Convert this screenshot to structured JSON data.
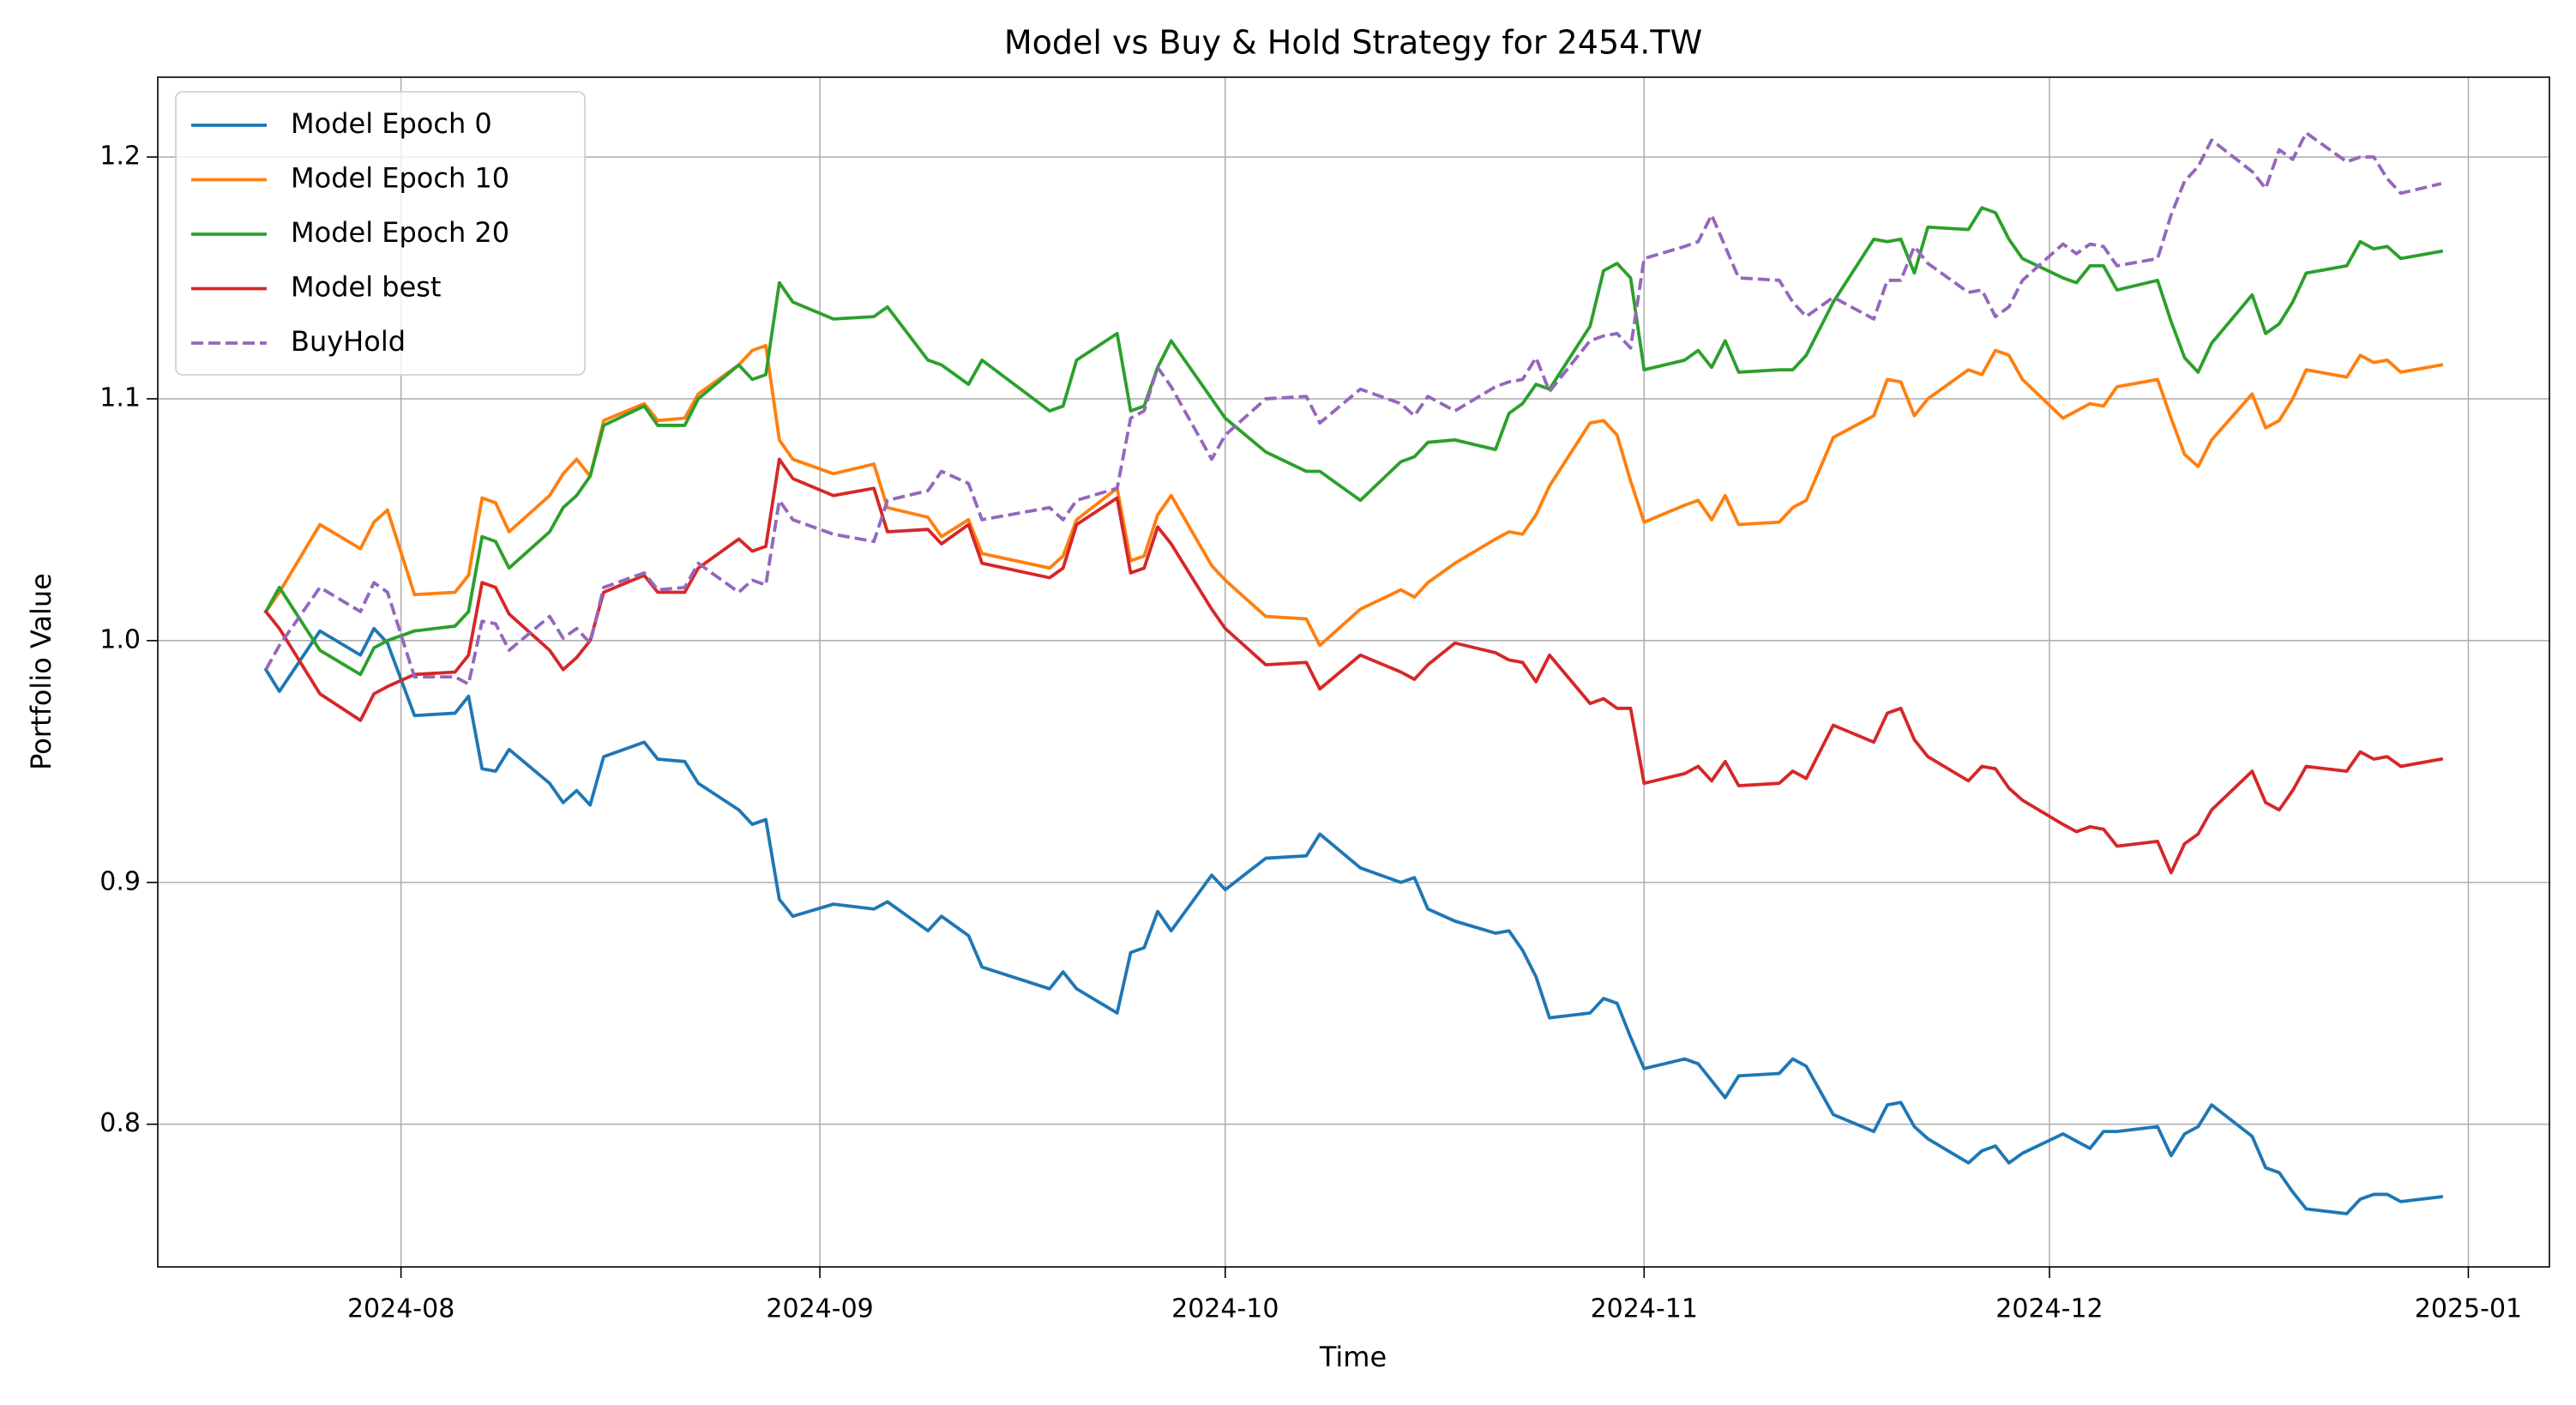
{
  "chart_data": {
    "type": "line",
    "title": "Model vs Buy & Hold Strategy for 2454.TW",
    "x_label": "Time",
    "y_label": "Portfolio Value",
    "x": [
      "2024-07-22",
      "2024-07-23",
      "2024-07-26",
      "2024-07-29",
      "2024-07-30",
      "2024-07-31",
      "2024-08-02",
      "2024-08-05",
      "2024-08-06",
      "2024-08-07",
      "2024-08-08",
      "2024-08-09",
      "2024-08-12",
      "2024-08-13",
      "2024-08-14",
      "2024-08-15",
      "2024-08-16",
      "2024-08-19",
      "2024-08-20",
      "2024-08-22",
      "2024-08-23",
      "2024-08-26",
      "2024-08-27",
      "2024-08-28",
      "2024-08-29",
      "2024-08-30",
      "2024-09-02",
      "2024-09-05",
      "2024-09-06",
      "2024-09-09",
      "2024-09-10",
      "2024-09-12",
      "2024-09-13",
      "2024-09-18",
      "2024-09-19",
      "2024-09-20",
      "2024-09-23",
      "2024-09-24",
      "2024-09-25",
      "2024-09-26",
      "2024-09-27",
      "2024-09-30",
      "2024-10-01",
      "2024-10-04",
      "2024-10-07",
      "2024-10-08",
      "2024-10-11",
      "2024-10-14",
      "2024-10-15",
      "2024-10-16",
      "2024-10-18",
      "2024-10-21",
      "2024-10-22",
      "2024-10-23",
      "2024-10-24",
      "2024-10-25",
      "2024-10-28",
      "2024-10-29",
      "2024-10-30",
      "2024-10-31",
      "2024-11-01",
      "2024-11-04",
      "2024-11-05",
      "2024-11-06",
      "2024-11-07",
      "2024-11-08",
      "2024-11-11",
      "2024-11-12",
      "2024-11-13",
      "2024-11-15",
      "2024-11-18",
      "2024-11-19",
      "2024-11-20",
      "2024-11-21",
      "2024-11-22",
      "2024-11-25",
      "2024-11-26",
      "2024-11-27",
      "2024-11-28",
      "2024-11-29",
      "2024-12-02",
      "2024-12-03",
      "2024-12-04",
      "2024-12-05",
      "2024-12-06",
      "2024-12-09",
      "2024-12-10",
      "2024-12-11",
      "2024-12-12",
      "2024-12-13",
      "2024-12-16",
      "2024-12-17",
      "2024-12-18",
      "2024-12-19",
      "2024-12-20",
      "2024-12-23",
      "2024-12-24",
      "2024-12-25",
      "2024-12-26",
      "2024-12-27",
      "2024-12-30"
    ],
    "series": [
      {
        "name": "Model Epoch 0",
        "color": "#1f77b4",
        "dashed": false,
        "values": [
          0.988,
          0.979,
          1.004,
          0.994,
          1.005,
          0.999,
          0.969,
          0.97,
          0.977,
          0.947,
          0.946,
          0.955,
          0.941,
          0.933,
          0.938,
          0.932,
          0.952,
          0.958,
          0.951,
          0.95,
          0.941,
          0.93,
          0.924,
          0.926,
          0.893,
          0.886,
          0.891,
          0.889,
          0.892,
          0.88,
          0.886,
          0.878,
          0.865,
          0.856,
          0.863,
          0.856,
          0.846,
          0.871,
          0.873,
          0.888,
          0.88,
          0.903,
          0.897,
          0.91,
          0.911,
          0.92,
          0.906,
          0.9,
          0.902,
          0.889,
          0.884,
          0.879,
          0.88,
          0.872,
          0.861,
          0.844,
          0.846,
          0.852,
          0.85,
          0.836,
          0.823,
          0.827,
          0.825,
          0.818,
          0.811,
          0.82,
          0.821,
          0.827,
          0.824,
          0.804,
          0.797,
          0.808,
          0.809,
          0.799,
          0.794,
          0.784,
          0.789,
          0.791,
          0.784,
          0.788,
          0.796,
          0.793,
          0.79,
          0.797,
          0.797,
          0.799,
          0.787,
          0.796,
          0.799,
          0.808,
          0.795,
          0.782,
          0.78,
          0.772,
          0.765,
          0.763,
          0.769,
          0.771,
          0.771,
          0.768,
          0.77
        ]
      },
      {
        "name": "Model Epoch 10",
        "color": "#ff7f0e",
        "dashed": false,
        "values": [
          1.012,
          1.02,
          1.048,
          1.038,
          1.049,
          1.054,
          1.019,
          1.02,
          1.027,
          1.059,
          1.057,
          1.045,
          1.06,
          1.069,
          1.075,
          1.068,
          1.091,
          1.098,
          1.091,
          1.092,
          1.102,
          1.114,
          1.12,
          1.122,
          1.083,
          1.075,
          1.069,
          1.073,
          1.055,
          1.051,
          1.043,
          1.05,
          1.036,
          1.03,
          1.035,
          1.05,
          1.063,
          1.033,
          1.035,
          1.052,
          1.06,
          1.031,
          1.025,
          1.01,
          1.009,
          0.998,
          1.013,
          1.021,
          1.018,
          1.024,
          1.032,
          1.042,
          1.045,
          1.044,
          1.052,
          1.064,
          1.09,
          1.091,
          1.085,
          1.066,
          1.049,
          1.056,
          1.058,
          1.05,
          1.06,
          1.048,
          1.049,
          1.055,
          1.058,
          1.084,
          1.093,
          1.108,
          1.107,
          1.093,
          1.1,
          1.112,
          1.11,
          1.12,
          1.118,
          1.108,
          1.092,
          1.095,
          1.098,
          1.097,
          1.105,
          1.108,
          1.092,
          1.077,
          1.072,
          1.083,
          1.102,
          1.088,
          1.091,
          1.1,
          1.112,
          1.109,
          1.118,
          1.115,
          1.116,
          1.111,
          1.114
        ]
      },
      {
        "name": "Model Epoch 20",
        "color": "#2ca02c",
        "dashed": false,
        "values": [
          1.012,
          1.022,
          0.996,
          0.986,
          0.997,
          1.0,
          1.004,
          1.006,
          1.012,
          1.043,
          1.041,
          1.03,
          1.045,
          1.055,
          1.06,
          1.068,
          1.089,
          1.097,
          1.089,
          1.089,
          1.1,
          1.114,
          1.108,
          1.11,
          1.148,
          1.14,
          1.133,
          1.134,
          1.138,
          1.116,
          1.114,
          1.106,
          1.116,
          1.095,
          1.097,
          1.116,
          1.127,
          1.095,
          1.097,
          1.113,
          1.124,
          1.1,
          1.092,
          1.078,
          1.07,
          1.07,
          1.058,
          1.074,
          1.076,
          1.082,
          1.083,
          1.079,
          1.094,
          1.098,
          1.106,
          1.104,
          1.13,
          1.153,
          1.156,
          1.15,
          1.112,
          1.116,
          1.12,
          1.113,
          1.124,
          1.111,
          1.112,
          1.112,
          1.118,
          1.14,
          1.166,
          1.165,
          1.166,
          1.152,
          1.171,
          1.17,
          1.179,
          1.177,
          1.166,
          1.158,
          1.15,
          1.148,
          1.155,
          1.155,
          1.145,
          1.149,
          1.132,
          1.117,
          1.111,
          1.123,
          1.143,
          1.127,
          1.131,
          1.14,
          1.152,
          1.155,
          1.165,
          1.162,
          1.163,
          1.158,
          1.161
        ]
      },
      {
        "name": "Model best",
        "color": "#d62728",
        "dashed": false,
        "values": [
          1.012,
          1.005,
          0.978,
          0.967,
          0.978,
          0.981,
          0.986,
          0.987,
          0.994,
          1.024,
          1.022,
          1.011,
          0.996,
          0.988,
          0.993,
          1.0,
          1.02,
          1.027,
          1.02,
          1.02,
          1.03,
          1.042,
          1.037,
          1.039,
          1.075,
          1.067,
          1.06,
          1.063,
          1.045,
          1.046,
          1.04,
          1.048,
          1.032,
          1.026,
          1.03,
          1.048,
          1.059,
          1.028,
          1.03,
          1.047,
          1.04,
          1.013,
          1.005,
          0.99,
          0.991,
          0.98,
          0.994,
          0.987,
          0.984,
          0.99,
          0.999,
          0.995,
          0.992,
          0.991,
          0.983,
          0.994,
          0.974,
          0.976,
          0.972,
          0.972,
          0.941,
          0.945,
          0.948,
          0.942,
          0.95,
          0.94,
          0.941,
          0.946,
          0.943,
          0.965,
          0.958,
          0.97,
          0.972,
          0.959,
          0.952,
          0.942,
          0.948,
          0.947,
          0.939,
          0.934,
          0.924,
          0.921,
          0.923,
          0.922,
          0.915,
          0.917,
          0.904,
          0.916,
          0.92,
          0.93,
          0.946,
          0.933,
          0.93,
          0.938,
          0.948,
          0.946,
          0.954,
          0.951,
          0.952,
          0.948,
          0.951
        ]
      },
      {
        "name": "BuyHold",
        "color": "#9467bd",
        "dashed": true,
        "values": [
          0.988,
          0.998,
          1.022,
          1.012,
          1.024,
          1.02,
          0.985,
          0.985,
          0.982,
          1.008,
          1.007,
          0.996,
          1.01,
          1.001,
          1.005,
          0.999,
          1.022,
          1.028,
          1.021,
          1.022,
          1.032,
          1.02,
          1.025,
          1.023,
          1.058,
          1.05,
          1.044,
          1.041,
          1.058,
          1.062,
          1.07,
          1.065,
          1.05,
          1.055,
          1.05,
          1.058,
          1.063,
          1.092,
          1.095,
          1.113,
          1.105,
          1.075,
          1.085,
          1.1,
          1.101,
          1.09,
          1.104,
          1.098,
          1.093,
          1.101,
          1.095,
          1.105,
          1.107,
          1.108,
          1.117,
          1.103,
          1.124,
          1.126,
          1.127,
          1.121,
          1.158,
          1.163,
          1.165,
          1.176,
          1.163,
          1.15,
          1.149,
          1.14,
          1.134,
          1.142,
          1.133,
          1.149,
          1.149,
          1.163,
          1.156,
          1.144,
          1.145,
          1.134,
          1.138,
          1.149,
          1.164,
          1.16,
          1.164,
          1.163,
          1.155,
          1.158,
          1.176,
          1.19,
          1.196,
          1.207,
          1.194,
          1.187,
          1.203,
          1.199,
          1.21,
          1.198,
          1.2,
          1.2,
          1.191,
          1.185,
          1.189
        ]
      }
    ],
    "xlim": [
      "2024-07-14",
      "2025-01-07"
    ],
    "xticks": [
      {
        "value": "2024-08-01",
        "label": "2024-08"
      },
      {
        "value": "2024-09-01",
        "label": "2024-09"
      },
      {
        "value": "2024-10-01",
        "label": "2024-10"
      },
      {
        "value": "2024-11-01",
        "label": "2024-11"
      },
      {
        "value": "2024-12-01",
        "label": "2024-12"
      },
      {
        "value": "2025-01-01",
        "label": "2025-01"
      }
    ],
    "ylim": [
      0.741,
      1.233
    ],
    "yticks": [
      0.8,
      0.9,
      {
        "value": 1.0,
        "label": "1.0"
      },
      1.1,
      1.2
    ],
    "grid": true,
    "legend": "upper-left"
  }
}
